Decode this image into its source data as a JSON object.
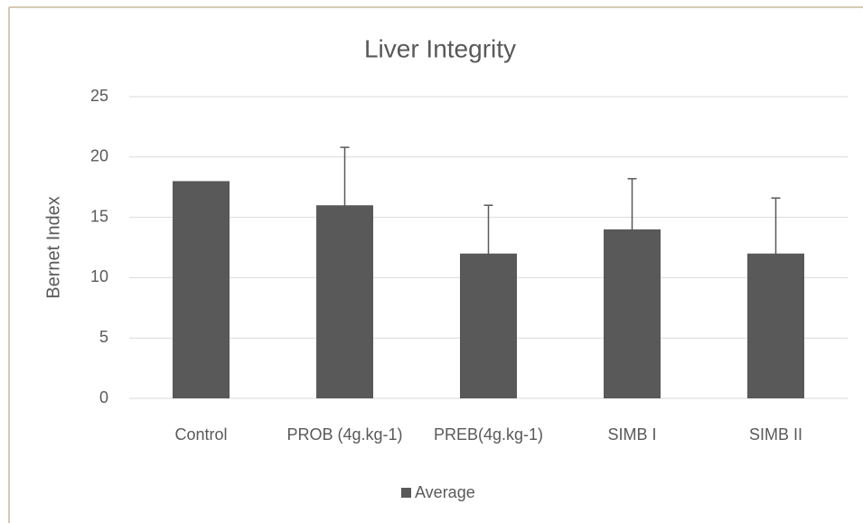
{
  "chart_data": {
    "type": "bar",
    "title": "Liver Integrity",
    "y_label": "Bernet Index",
    "categories": [
      "Control",
      "PROB (4g.kg-1)",
      "PREB(4g.kg-1)",
      "SIMB I",
      "SIMB II"
    ],
    "series": [
      {
        "name": "Average",
        "color": "#595959",
        "values": [
          18,
          16,
          12,
          14,
          12
        ],
        "errors": [
          null,
          4.8,
          4,
          4.2,
          4.6
        ]
      }
    ],
    "ylim": [
      0,
      25
    ],
    "yticks": [
      0,
      5,
      10,
      15,
      20,
      25
    ],
    "grid": true,
    "legend": "bottom"
  }
}
